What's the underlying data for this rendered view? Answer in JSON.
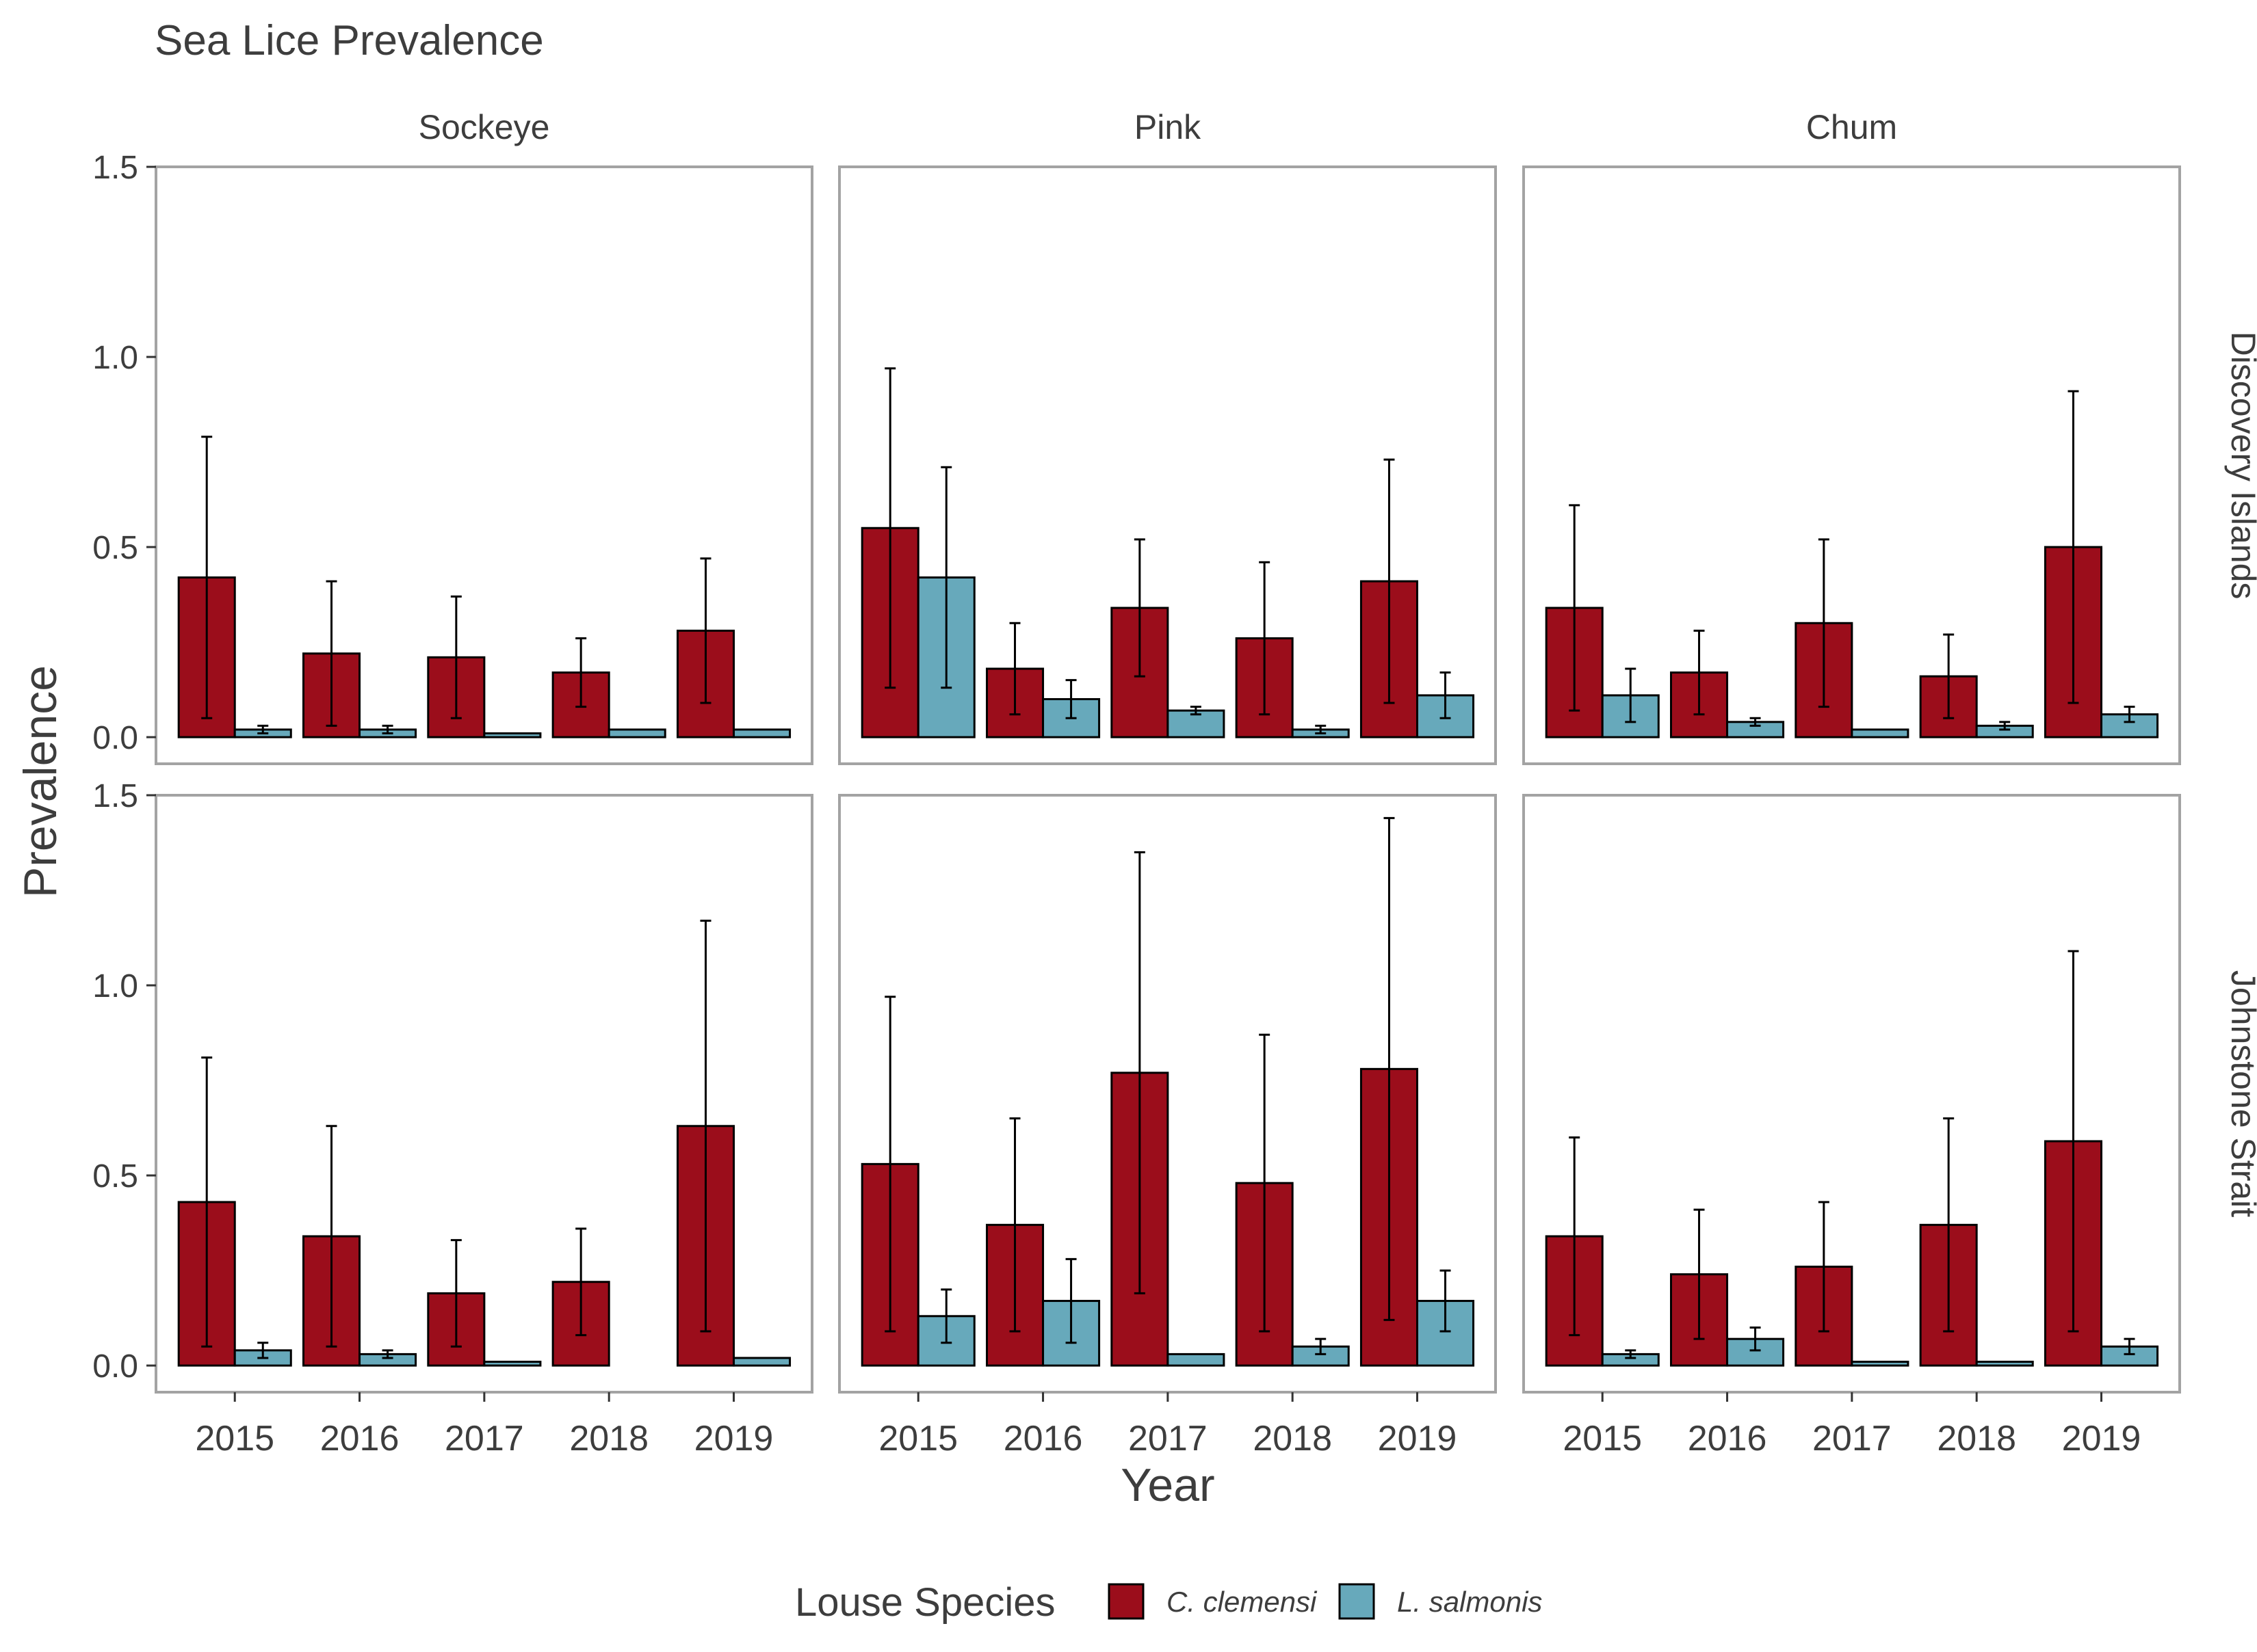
{
  "chart_data": {
    "type": "bar",
    "title": "Sea Lice Prevalence",
    "xlabel": "Year",
    "ylabel": "Prevalence",
    "ylim": [
      -0.07,
      1.5
    ],
    "yticks": [
      "0.0",
      "0.5",
      "1.0",
      "1.5"
    ],
    "categories": [
      "2015",
      "2016",
      "2017",
      "2018",
      "2019"
    ],
    "columns": [
      "Sockeye",
      "Pink",
      "Chum"
    ],
    "rows": [
      "Discovery Islands",
      "Johnstone Strait"
    ],
    "grid": false,
    "legend": {
      "title": "Louse Species",
      "position": "bottom",
      "entries": [
        "C. clemensi",
        "L. salmonis"
      ]
    },
    "colors": {
      "C. clemensi": "#9b0d1b",
      "L. salmonis": "#67a9bb"
    },
    "panels": [
      {
        "column": "Sockeye",
        "row": "Discovery Islands",
        "series": [
          {
            "name": "C. clemensi",
            "values": [
              0.42,
              0.22,
              0.21,
              0.17,
              0.28
            ],
            "err_low": [
              0.05,
              0.03,
              0.05,
              0.08,
              0.09
            ],
            "err_high": [
              0.79,
              0.41,
              0.37,
              0.26,
              0.47
            ]
          },
          {
            "name": "L. salmonis",
            "values": [
              0.02,
              0.02,
              0.01,
              0.02,
              0.02
            ],
            "err_low": [
              0.01,
              0.01,
              null,
              null,
              null
            ],
            "err_high": [
              0.03,
              0.03,
              null,
              null,
              null
            ]
          }
        ]
      },
      {
        "column": "Pink",
        "row": "Discovery Islands",
        "series": [
          {
            "name": "C. clemensi",
            "values": [
              0.55,
              0.18,
              0.34,
              0.26,
              0.41
            ],
            "err_low": [
              0.13,
              0.06,
              0.16,
              0.06,
              0.09
            ],
            "err_high": [
              0.97,
              0.3,
              0.52,
              0.46,
              0.73
            ]
          },
          {
            "name": "L. salmonis",
            "values": [
              0.42,
              0.1,
              0.07,
              0.02,
              0.11
            ],
            "err_low": [
              0.13,
              0.05,
              0.06,
              0.01,
              0.05
            ],
            "err_high": [
              0.71,
              0.15,
              0.08,
              0.03,
              0.17
            ]
          }
        ]
      },
      {
        "column": "Chum",
        "row": "Discovery Islands",
        "series": [
          {
            "name": "C. clemensi",
            "values": [
              0.34,
              0.17,
              0.3,
              0.16,
              0.5
            ],
            "err_low": [
              0.07,
              0.06,
              0.08,
              0.05,
              0.09
            ],
            "err_high": [
              0.61,
              0.28,
              0.52,
              0.27,
              0.91
            ]
          },
          {
            "name": "L. salmonis",
            "values": [
              0.11,
              0.04,
              0.02,
              0.03,
              0.06
            ],
            "err_low": [
              0.04,
              0.03,
              null,
              0.02,
              0.04
            ],
            "err_high": [
              0.18,
              0.05,
              null,
              0.04,
              0.08
            ]
          }
        ]
      },
      {
        "column": "Sockeye",
        "row": "Johnstone Strait",
        "series": [
          {
            "name": "C. clemensi",
            "values": [
              0.43,
              0.34,
              0.19,
              0.22,
              0.63
            ],
            "err_low": [
              0.05,
              0.05,
              0.05,
              0.08,
              0.09
            ],
            "err_high": [
              0.81,
              0.63,
              0.33,
              0.36,
              1.17
            ]
          },
          {
            "name": "L. salmonis",
            "values": [
              0.04,
              0.03,
              0.01,
              0.0,
              0.02
            ],
            "err_low": [
              0.02,
              0.02,
              null,
              null,
              null
            ],
            "err_high": [
              0.06,
              0.04,
              null,
              null,
              null
            ]
          }
        ]
      },
      {
        "column": "Pink",
        "row": "Johnstone Strait",
        "series": [
          {
            "name": "C. clemensi",
            "values": [
              0.53,
              0.37,
              0.77,
              0.48,
              0.78
            ],
            "err_low": [
              0.09,
              0.09,
              0.19,
              0.09,
              0.12
            ],
            "err_high": [
              0.97,
              0.65,
              1.35,
              0.87,
              1.44
            ]
          },
          {
            "name": "L. salmonis",
            "values": [
              0.13,
              0.17,
              0.03,
              0.05,
              0.17
            ],
            "err_low": [
              0.06,
              0.06,
              null,
              0.03,
              0.09
            ],
            "err_high": [
              0.2,
              0.28,
              null,
              0.07,
              0.25
            ]
          }
        ]
      },
      {
        "column": "Chum",
        "row": "Johnstone Strait",
        "series": [
          {
            "name": "C. clemensi",
            "values": [
              0.34,
              0.24,
              0.26,
              0.37,
              0.59
            ],
            "err_low": [
              0.08,
              0.07,
              0.09,
              0.09,
              0.09
            ],
            "err_high": [
              0.6,
              0.41,
              0.43,
              0.65,
              1.09
            ]
          },
          {
            "name": "L. salmonis",
            "values": [
              0.03,
              0.07,
              0.01,
              0.01,
              0.05
            ],
            "err_low": [
              0.02,
              0.04,
              null,
              null,
              0.03
            ],
            "err_high": [
              0.04,
              0.1,
              null,
              null,
              0.07
            ]
          }
        ]
      }
    ]
  }
}
